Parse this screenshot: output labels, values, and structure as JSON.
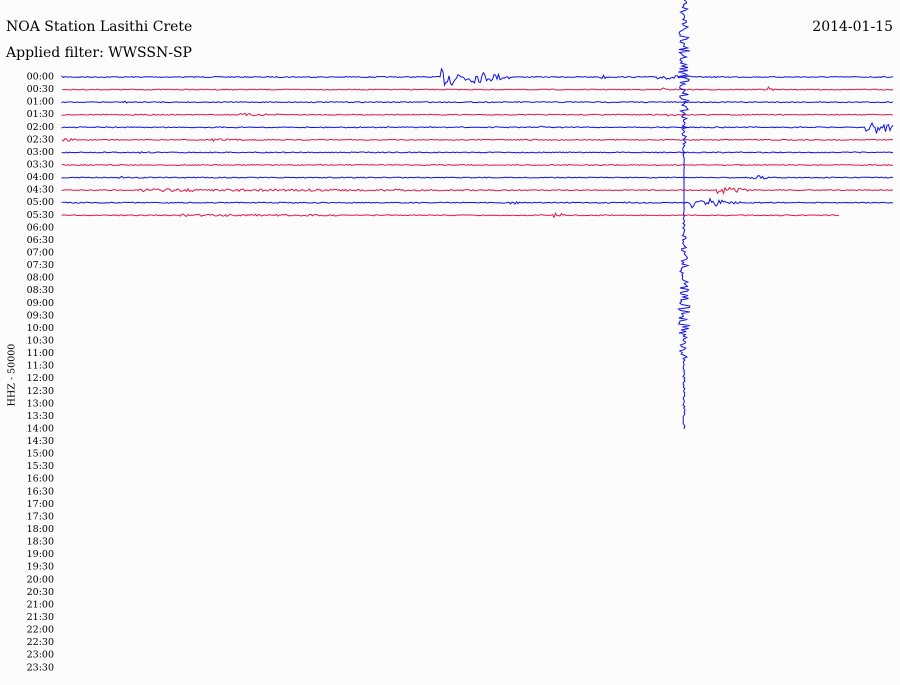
{
  "header": {
    "title": "NOA Station Lasithi Crete",
    "date": "2014-01-15",
    "filter": "Applied filter: WWSSN-SP"
  },
  "axis_label": "HHZ - 50000",
  "rows": [
    "00:00",
    "00:30",
    "01:00",
    "01:30",
    "02:00",
    "02:30",
    "03:00",
    "03:30",
    "04:00",
    "04:30",
    "05:00",
    "05:30",
    "06:00",
    "06:30",
    "07:00",
    "07:30",
    "08:00",
    "08:30",
    "09:00",
    "09:30",
    "10:00",
    "10:30",
    "11:00",
    "11:30",
    "12:00",
    "12:30",
    "13:00",
    "13:30",
    "14:00",
    "14:30",
    "15:00",
    "15:30",
    "16:00",
    "16:30",
    "17:00",
    "17:30",
    "18:00",
    "18:30",
    "19:00",
    "19:30",
    "20:00",
    "20:30",
    "21:00",
    "21:30",
    "22:00",
    "22:30",
    "23:00",
    "23:30"
  ]
}
